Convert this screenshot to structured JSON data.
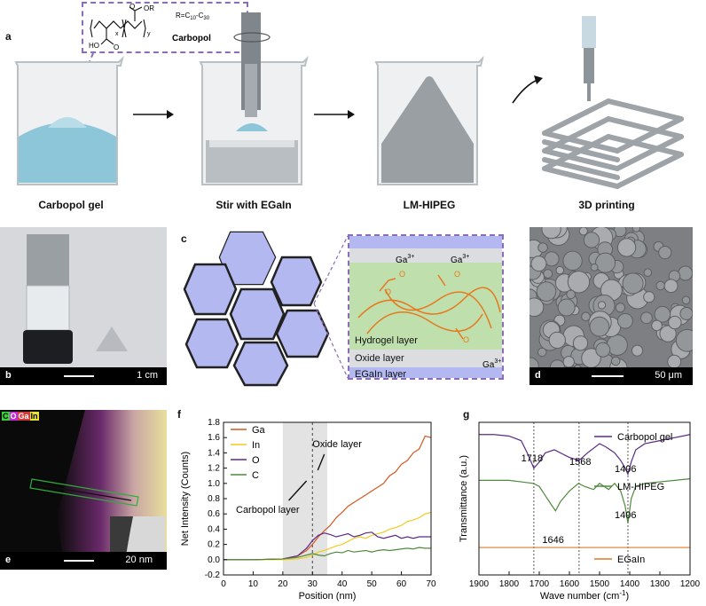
{
  "panel_a": {
    "letter": "a",
    "captions": [
      "Carbopol gel",
      "Stir with EGaIn",
      "LM-HIPEG",
      "3D printing"
    ],
    "structure": {
      "name": "Carbopol",
      "r_group": "R=C",
      "r_sub1": "10",
      "r_mid": "-C",
      "r_sub2": "30",
      "or_label": "OR",
      "o_label": "O",
      "ho_label": "HO",
      "x_label": "x",
      "y_label": "y"
    }
  },
  "panel_b": {
    "letter": "b",
    "scale": "1 cm"
  },
  "panel_c": {
    "letter": "c",
    "ga": "Ga",
    "charge": "3+",
    "o_minus": "O",
    "layers": [
      "Hydrogel layer",
      "Oxide layer",
      "EGaIn layer"
    ]
  },
  "panel_d": {
    "letter": "d",
    "scale": "50 μm"
  },
  "panel_e": {
    "letter": "e",
    "scale": "20 nm",
    "legend": [
      "C",
      "O",
      "Ga",
      "In"
    ]
  },
  "panel_f": {
    "letter": "f",
    "annotations": [
      "Oxide layer",
      "Carbopol layer"
    ],
    "chart_data": {
      "type": "line",
      "xlabel": "Position (nm)",
      "ylabel": "Net Intensity (Counts)",
      "xlim": [
        0,
        70
      ],
      "ylim": [
        -0.2,
        1.8
      ],
      "xticks": [
        0,
        10,
        20,
        30,
        40,
        50,
        60,
        70
      ],
      "yticks": [
        -0.2,
        0.0,
        0.2,
        0.4,
        0.6,
        0.8,
        1.0,
        1.2,
        1.4,
        1.6,
        1.8
      ],
      "shaded_region": [
        20,
        35
      ],
      "dashed_line_x": 30,
      "legend_position": "top-left",
      "series": [
        {
          "name": "Ga",
          "color": "#d4581f",
          "x": [
            0,
            10,
            20,
            25,
            28,
            30,
            32,
            34,
            36,
            38,
            40,
            42,
            44,
            46,
            48,
            50,
            52,
            54,
            56,
            58,
            60,
            62,
            64,
            66,
            68,
            70
          ],
          "values": [
            0,
            0,
            0.01,
            0.05,
            0.12,
            0.2,
            0.3,
            0.38,
            0.45,
            0.55,
            0.62,
            0.7,
            0.75,
            0.8,
            0.85,
            0.9,
            0.95,
            1.0,
            1.1,
            1.15,
            1.25,
            1.3,
            1.4,
            1.45,
            1.62,
            1.6
          ]
        },
        {
          "name": "In",
          "color": "#f1cb1b",
          "x": [
            0,
            10,
            20,
            25,
            28,
            30,
            32,
            34,
            36,
            38,
            40,
            42,
            44,
            46,
            48,
            50,
            52,
            54,
            56,
            58,
            60,
            62,
            64,
            66,
            68,
            70
          ],
          "values": [
            0,
            0,
            0,
            0.01,
            0.03,
            0.06,
            0.1,
            0.12,
            0.15,
            0.18,
            0.2,
            0.24,
            0.28,
            0.3,
            0.28,
            0.32,
            0.34,
            0.36,
            0.4,
            0.42,
            0.45,
            0.5,
            0.52,
            0.55,
            0.6,
            0.62
          ]
        },
        {
          "name": "O",
          "color": "#5c2a86",
          "x": [
            0,
            10,
            20,
            25,
            28,
            30,
            32,
            34,
            36,
            38,
            40,
            42,
            44,
            46,
            48,
            50,
            52,
            54,
            56,
            58,
            60,
            62,
            64,
            66,
            68,
            70
          ],
          "values": [
            0,
            0,
            0.01,
            0.05,
            0.15,
            0.25,
            0.32,
            0.35,
            0.33,
            0.3,
            0.32,
            0.34,
            0.3,
            0.32,
            0.35,
            0.36,
            0.3,
            0.28,
            0.3,
            0.32,
            0.28,
            0.3,
            0.28,
            0.3,
            0.3,
            0.3
          ]
        },
        {
          "name": "C",
          "color": "#4f8a3c",
          "x": [
            0,
            10,
            20,
            25,
            28,
            30,
            32,
            34,
            36,
            38,
            40,
            42,
            44,
            46,
            48,
            50,
            52,
            54,
            56,
            58,
            60,
            62,
            64,
            66,
            68,
            70
          ],
          "values": [
            0,
            0,
            0.01,
            0.03,
            0.06,
            0.08,
            0.06,
            0.05,
            0.08,
            0.1,
            0.09,
            0.12,
            0.1,
            0.11,
            0.12,
            0.1,
            0.12,
            0.13,
            0.12,
            0.13,
            0.14,
            0.15,
            0.14,
            0.16,
            0.15,
            0.15
          ]
        }
      ]
    }
  },
  "panel_g": {
    "letter": "g",
    "peaks": [
      "1718",
      "1568",
      "1406",
      "1646",
      "1406"
    ],
    "chart_data": {
      "type": "line",
      "xlabel": "Wave number (cm",
      "xlabel_sup": "-1",
      "xlabel_end": ")",
      "ylabel": "Transmittance (a.u.)",
      "xlim": [
        1900,
        1200
      ],
      "xticks": [
        1900,
        1800,
        1700,
        1600,
        1500,
        1400,
        1300,
        1200
      ],
      "dashed_lines_x": [
        1718,
        1568,
        1406
      ],
      "series": [
        {
          "name": "Carbopol gel",
          "color": "#5c2a86",
          "x": [
            1900,
            1850,
            1800,
            1760,
            1740,
            1718,
            1700,
            1680,
            1650,
            1620,
            1600,
            1568,
            1540,
            1500,
            1480,
            1450,
            1430,
            1415,
            1406,
            1395,
            1380,
            1350,
            1300,
            1250,
            1200
          ],
          "values": [
            0.92,
            0.92,
            0.91,
            0.88,
            0.8,
            0.7,
            0.74,
            0.8,
            0.82,
            0.79,
            0.77,
            0.75,
            0.8,
            0.86,
            0.84,
            0.8,
            0.75,
            0.7,
            0.66,
            0.74,
            0.82,
            0.86,
            0.88,
            0.9,
            0.92
          ]
        },
        {
          "name": "LM-HIPEG",
          "color": "#4f8a3c",
          "x": [
            1900,
            1850,
            1800,
            1760,
            1720,
            1700,
            1680,
            1660,
            1646,
            1630,
            1600,
            1570,
            1550,
            1520,
            1500,
            1470,
            1450,
            1430,
            1415,
            1406,
            1395,
            1380,
            1350,
            1300,
            1250,
            1200
          ],
          "values": [
            0.62,
            0.62,
            0.62,
            0.61,
            0.6,
            0.58,
            0.52,
            0.46,
            0.42,
            0.48,
            0.55,
            0.6,
            0.58,
            0.56,
            0.6,
            0.56,
            0.6,
            0.55,
            0.45,
            0.34,
            0.5,
            0.58,
            0.6,
            0.61,
            0.62,
            0.63
          ]
        },
        {
          "name": "EGaIn",
          "color": "#e07a2a",
          "x": [
            1900,
            1800,
            1700,
            1600,
            1500,
            1400,
            1300,
            1200
          ],
          "values": [
            0.18,
            0.18,
            0.18,
            0.18,
            0.18,
            0.18,
            0.18,
            0.18
          ]
        }
      ]
    }
  }
}
